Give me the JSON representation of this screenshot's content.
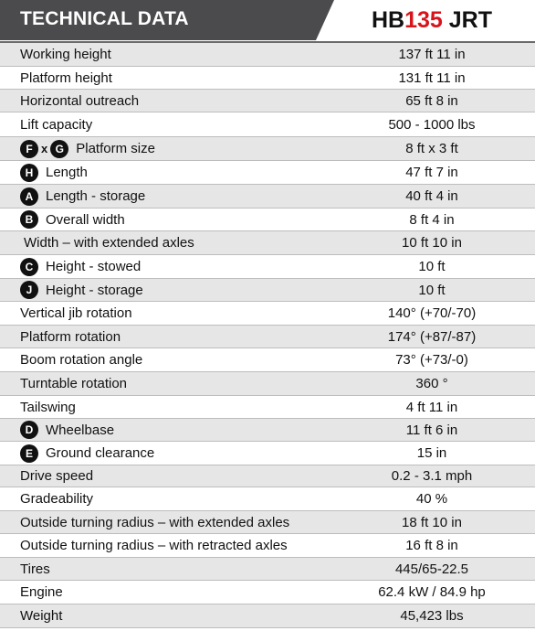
{
  "header": {
    "title": "TECHNICAL DATA",
    "model_prefix": "HB",
    "model_number": "135",
    "model_suffix": "JRT"
  },
  "colors": {
    "header_band": "#4b4b4d",
    "model_accent": "#d7141c",
    "row_alt": "#e6e6e6",
    "badge": "#111111"
  },
  "specs": {
    "working_height": {
      "label": "Working height",
      "value": "137 ft 11 in"
    },
    "platform_height": {
      "label": "Platform height",
      "value": "131 ft 11 in"
    },
    "horizontal_outreach": {
      "label": "Horizontal outreach",
      "value": "65 ft 8 in"
    },
    "lift_capacity": {
      "label": "Lift capacity",
      "value": "500 - 1000 lbs"
    },
    "platform_size": {
      "badge1": "F",
      "times": "x",
      "badge2": "G",
      "label": "Platform size",
      "value": "8 ft x 3 ft"
    },
    "length": {
      "badge": "H",
      "label": "Length",
      "value": "47 ft 7 in"
    },
    "length_storage": {
      "badge": "A",
      "label": "Length - storage",
      "value": "40 ft 4 in"
    },
    "overall_width": {
      "badge": "B",
      "label": "Overall width",
      "value": "8 ft 4 in"
    },
    "width_extended": {
      "label": "Width – with extended axles",
      "value": "10 ft 10 in"
    },
    "height_stowed": {
      "badge": "C",
      "label": "Height - stowed",
      "value": "10 ft"
    },
    "height_storage": {
      "badge": "J",
      "label": "Height - storage",
      "value": "10 ft"
    },
    "vertical_jib_rotation": {
      "label": "Vertical jib rotation",
      "value": "140° (+70/-70)"
    },
    "platform_rotation": {
      "label": "Platform rotation",
      "value": "174° (+87/-87)"
    },
    "boom_rotation_angle": {
      "label": "Boom rotation angle",
      "value": "73° (+73/-0)"
    },
    "turntable_rotation": {
      "label": "Turntable rotation",
      "value": "360 °"
    },
    "tailswing": {
      "label": "Tailswing",
      "value": "4 ft 11 in"
    },
    "wheelbase": {
      "badge": "D",
      "label": "Wheelbase",
      "value": "11 ft 6 in"
    },
    "ground_clearance": {
      "badge": "E",
      "label": "Ground clearance",
      "value": "15 in"
    },
    "drive_speed": {
      "label": "Drive speed",
      "value": "0.2 - 3.1 mph"
    },
    "gradeability": {
      "label": "Gradeability",
      "value": "40 %"
    },
    "turning_radius_extended": {
      "label": "Outside turning radius – with extended axles",
      "value": "18 ft 10 in"
    },
    "turning_radius_retracted": {
      "label": "Outside turning radius – with retracted axles",
      "value": "16 ft 8 in"
    },
    "tires": {
      "label": "Tires",
      "value": "445/65-22.5"
    },
    "engine": {
      "label": "Engine",
      "value": "62.4 kW / 84.9 hp"
    },
    "weight": {
      "label": "Weight",
      "value": "45,423 lbs"
    }
  }
}
